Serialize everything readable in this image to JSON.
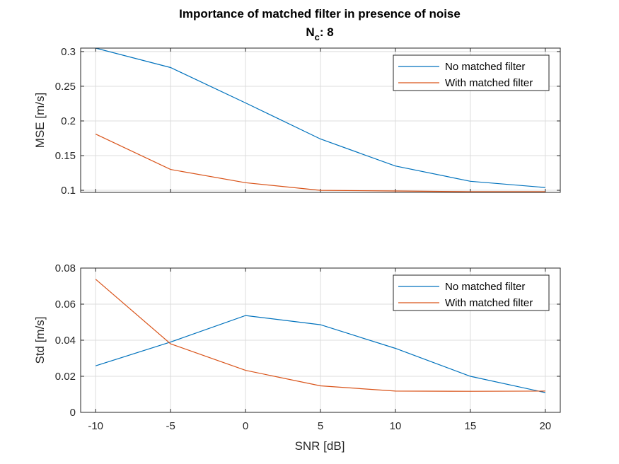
{
  "title": {
    "line1": "Importance of matched filter in presence of noise",
    "n_symbol": "N",
    "n_subscript": "c",
    "n_suffix": ": 8"
  },
  "colors": {
    "no_mf": "#0072BD",
    "with_mf": "#D95319"
  },
  "chart_data": [
    {
      "type": "line",
      "x": [
        -10,
        -5,
        0,
        5,
        10,
        15,
        20
      ],
      "xlim": [
        -11,
        21
      ],
      "ylim": [
        0.097,
        0.305
      ],
      "xticks": [
        -10,
        -5,
        0,
        5,
        10,
        15,
        20
      ],
      "yticks": [
        0.1,
        0.15,
        0.2,
        0.25,
        0.3
      ],
      "ytick_labels": [
        "0.1",
        "0.15",
        "0.2",
        "0.25",
        "0.3"
      ],
      "ylabel": "MSE [m/s]",
      "grid": true,
      "legend": "top-right",
      "series": [
        {
          "name": "No matched filter",
          "values": [
            0.305,
            0.277,
            0.226,
            0.174,
            0.135,
            0.113,
            0.104
          ]
        },
        {
          "name": "With matched filter",
          "values": [
            0.181,
            0.13,
            0.111,
            0.1,
            0.099,
            0.098,
            0.098
          ]
        }
      ]
    },
    {
      "type": "line",
      "x": [
        -10,
        -5,
        0,
        5,
        10,
        15,
        20
      ],
      "xlim": [
        -11,
        21
      ],
      "ylim": [
        0,
        0.08
      ],
      "xticks": [
        -10,
        -5,
        0,
        5,
        10,
        15,
        20
      ],
      "xtick_labels": [
        "-10",
        "-5",
        "0",
        "5",
        "10",
        "15",
        "20"
      ],
      "yticks": [
        0,
        0.02,
        0.04,
        0.06,
        0.08
      ],
      "ytick_labels": [
        "0",
        "0.02",
        "0.04",
        "0.06",
        "0.08"
      ],
      "xlabel": "SNR [dB]",
      "ylabel": "Std [m/s]",
      "grid": true,
      "legend": "top-right",
      "series": [
        {
          "name": "No matched filter",
          "values": [
            0.0258,
            0.039,
            0.0537,
            0.0486,
            0.0355,
            0.02,
            0.011
          ]
        },
        {
          "name": "With matched filter",
          "values": [
            0.0738,
            0.038,
            0.0233,
            0.0147,
            0.0118,
            0.0117,
            0.0118
          ]
        }
      ]
    }
  ]
}
